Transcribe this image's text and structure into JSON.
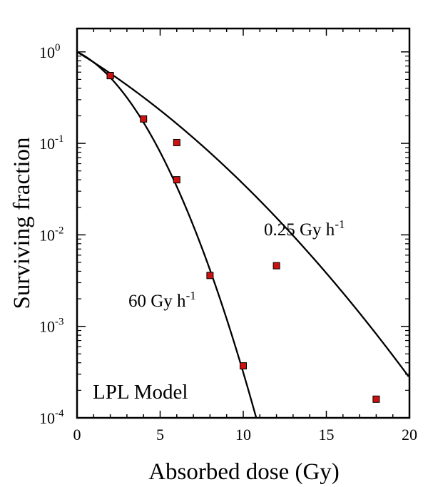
{
  "chart_data": {
    "type": "line",
    "title": "",
    "xlabel": "Absorbed dose (Gy)",
    "ylabel": "Surviving fraction",
    "xlim": [
      0,
      20
    ],
    "ylim": [
      0.0001,
      1.8
    ],
    "yscale": "log",
    "x_ticks": [
      0,
      5,
      10,
      15,
      20
    ],
    "x_tick_labels": [
      "0",
      "5",
      "10",
      "15",
      "20"
    ],
    "y_ticks": [
      {
        "value": 1,
        "base": "10",
        "exp": "0"
      },
      {
        "value": 0.1,
        "base": "10",
        "exp": "-1"
      },
      {
        "value": 0.01,
        "base": "10",
        "exp": "-2"
      },
      {
        "value": 0.001,
        "base": "10",
        "exp": "-3"
      },
      {
        "value": 0.0001,
        "base": "10",
        "exp": "-4"
      }
    ],
    "annotation": "LPL Model",
    "marker_color": "#cc1111",
    "series": [
      {
        "name": "0.25 Gy h-1",
        "label_main": "0.25 Gy h",
        "label_sup": "-1",
        "curve": {
          "alpha": 0.255,
          "beta": 0.00775
        },
        "points": [
          {
            "x": 2,
            "y": 0.55
          },
          {
            "x": 6,
            "y": 0.102
          },
          {
            "x": 12,
            "y": 0.0046
          },
          {
            "x": 18,
            "y": 0.00016
          }
        ]
      },
      {
        "name": "60 Gy h-1",
        "label_main": "60 Gy h",
        "label_sup": "-1",
        "curve": {
          "alpha": 0.202,
          "beta": 0.0605
        },
        "points": [
          {
            "x": 2,
            "y": 0.55
          },
          {
            "x": 4,
            "y": 0.185
          },
          {
            "x": 6,
            "y": 0.04
          },
          {
            "x": 8,
            "y": 0.0036
          },
          {
            "x": 10,
            "y": 0.00037
          }
        ]
      }
    ]
  }
}
